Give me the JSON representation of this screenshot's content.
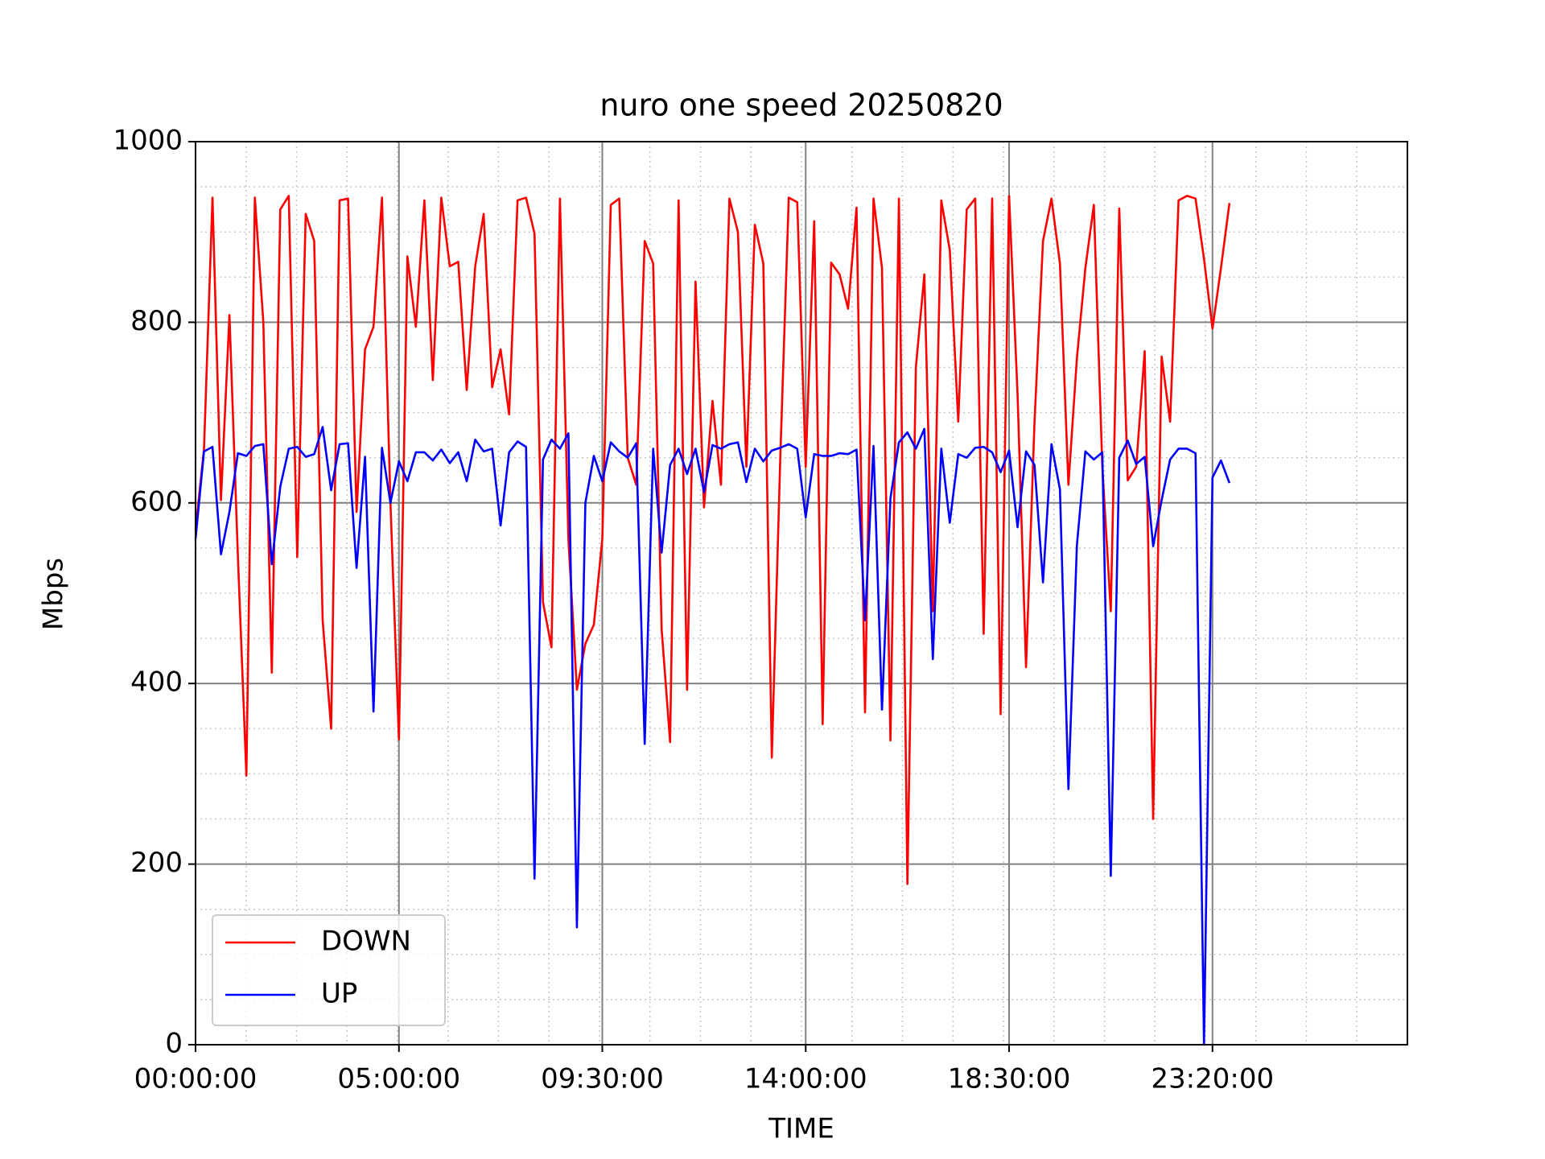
{
  "chart_data": {
    "type": "line",
    "title": "nuro one speed 20250820",
    "x_label": "TIME",
    "y_label": "Mbps",
    "categories": [
      "00:00:00",
      null,
      null,
      null,
      null,
      null,
      null,
      null,
      null,
      null,
      null,
      null,
      null,
      null,
      null,
      null,
      null,
      null,
      null,
      null,
      null,
      null,
      null,
      null,
      "05:00:00",
      null,
      null,
      null,
      null,
      null,
      null,
      null,
      null,
      null,
      null,
      null,
      null,
      null,
      null,
      null,
      null,
      null,
      null,
      null,
      null,
      null,
      null,
      null,
      "09:30:00",
      null,
      null,
      null,
      null,
      null,
      null,
      null,
      null,
      null,
      null,
      null,
      null,
      null,
      null,
      null,
      null,
      null,
      null,
      null,
      null,
      null,
      null,
      null,
      "14:00:00",
      null,
      null,
      null,
      null,
      null,
      null,
      null,
      null,
      null,
      null,
      null,
      null,
      null,
      null,
      null,
      null,
      null,
      null,
      null,
      null,
      null,
      null,
      null,
      "18:30:00",
      null,
      null,
      null,
      null,
      null,
      null,
      null,
      null,
      null,
      null,
      null,
      null,
      null,
      null,
      null,
      null,
      null,
      null,
      null,
      null,
      null,
      null,
      null,
      "23:20:00",
      null,
      null,
      null,
      null,
      null,
      null,
      null,
      null,
      null,
      null,
      null,
      null,
      null,
      null,
      null,
      null,
      null,
      null,
      null,
      null,
      null,
      null,
      null
    ],
    "series": [
      {
        "name": "DOWN",
        "color": "#ff0000",
        "values": [
          570,
          660,
          938,
          603,
          808,
          540,
          298,
          938,
          800,
          412,
          925,
          940,
          540,
          920,
          890,
          470,
          350,
          935,
          937,
          590,
          770,
          795,
          938,
          600,
          338,
          873,
          795,
          935,
          736,
          938,
          862,
          867,
          725,
          862,
          920,
          728,
          770,
          698,
          935,
          938,
          898,
          490,
          440,
          937,
          560,
          393,
          444,
          465,
          560,
          930,
          937,
          650,
          620,
          890,
          865,
          460,
          335,
          935,
          393,
          845,
          595,
          713,
          620,
          937,
          900,
          640,
          908,
          865,
          318,
          650,
          938,
          933,
          640,
          912,
          355,
          866,
          853,
          815,
          927,
          368,
          937,
          860,
          337,
          937,
          178,
          750,
          853,
          480,
          935,
          880,
          690,
          925,
          937,
          455,
          937,
          366,
          940,
          720,
          418,
          690,
          890,
          937,
          865,
          620,
          760,
          860,
          930,
          640,
          480,
          926,
          625,
          640,
          768,
          250,
          762,
          690,
          935,
          940,
          937,
          870,
          793,
          860,
          932,
          null,
          null,
          null,
          null,
          null,
          null,
          null,
          null,
          null,
          null,
          null,
          null,
          null,
          null,
          null,
          null,
          null,
          null,
          null,
          null,
          null
        ]
      },
      {
        "name": "UP",
        "color": "#0000ff",
        "values": [
          560,
          657,
          662,
          543,
          590,
          655,
          652,
          663,
          665,
          532,
          618,
          660,
          662,
          651,
          654,
          684,
          614,
          665,
          666,
          528,
          651,
          369,
          661,
          600,
          646,
          624,
          656,
          656,
          647,
          659,
          644,
          656,
          624,
          670,
          657,
          660,
          575,
          656,
          668,
          662,
          184,
          648,
          670,
          660,
          677,
          130,
          600,
          652,
          624,
          667,
          657,
          650,
          666,
          333,
          660,
          545,
          642,
          660,
          632,
          660,
          612,
          664,
          660,
          665,
          667,
          623,
          660,
          646,
          658,
          661,
          665,
          660,
          584,
          654,
          652,
          652,
          655,
          654,
          659,
          470,
          663,
          371,
          605,
          667,
          678,
          660,
          682,
          427,
          660,
          578,
          654,
          650,
          661,
          662,
          656,
          634,
          658,
          573,
          657,
          642,
          512,
          665,
          615,
          283,
          553,
          657,
          648,
          656,
          187,
          650,
          669,
          643,
          651,
          552,
          603,
          648,
          660,
          660,
          655,
          0,
          628,
          647,
          622,
          null,
          null,
          null,
          null,
          null,
          null,
          null,
          null,
          null,
          null,
          null,
          null,
          null,
          null,
          null,
          null,
          null,
          null,
          null,
          null,
          null
        ]
      }
    ],
    "ylim": [
      0,
      1000
    ],
    "yticks": [
      0,
      200,
      400,
      600,
      800,
      1000
    ],
    "grid": true,
    "legend": "lower left"
  }
}
